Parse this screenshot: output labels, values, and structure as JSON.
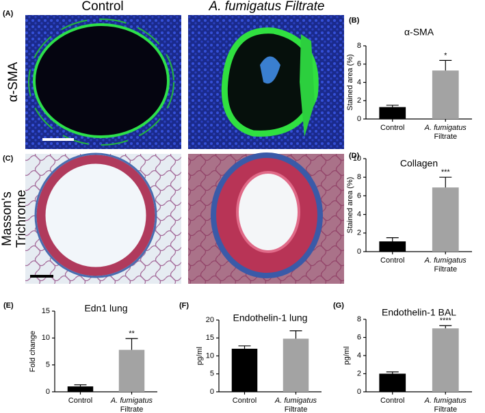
{
  "figure": {
    "image_panels": [
      "(A)",
      "(C)"
    ],
    "columns": [
      "Control",
      "A. fumigatus Filtrate"
    ],
    "rows": [
      [
        "α-SMA"
      ],
      [
        "Masson's",
        "Trichrome"
      ]
    ]
  },
  "chart_data": [
    {
      "type": "bar",
      "panel": "(B)",
      "title": "α-SMA",
      "y_label": "Stained area (%)",
      "categories": [
        [
          "Control"
        ],
        [
          "A. fumigatus",
          "Filtrate"
        ]
      ],
      "values": [
        1.3,
        5.3
      ],
      "errors": [
        0.2,
        1.1
      ],
      "colors": [
        "#000000",
        "#a3a3a3"
      ],
      "annotation": "*",
      "ylim": [
        0,
        8
      ],
      "yticks": [
        0,
        2,
        4,
        6,
        8
      ]
    },
    {
      "type": "bar",
      "panel": "(D)",
      "title": "Collagen",
      "y_label": "Stained area (%)",
      "categories": [
        [
          "Control"
        ],
        [
          "A. fumigatus",
          "Filtrate"
        ]
      ],
      "values": [
        1.1,
        6.9
      ],
      "errors": [
        0.4,
        1.1
      ],
      "colors": [
        "#000000",
        "#a3a3a3"
      ],
      "annotation": "***",
      "ylim": [
        0,
        10
      ],
      "yticks": [
        0,
        2,
        4,
        6,
        8,
        10
      ]
    },
    {
      "type": "bar",
      "panel": "(E)",
      "title": "Edn1 lung",
      "y_label": "Fold change",
      "categories": [
        [
          "Control"
        ],
        [
          "A. fumigatus",
          "Filtrate"
        ]
      ],
      "values": [
        1.0,
        7.8
      ],
      "errors": [
        0.3,
        2.1
      ],
      "colors": [
        "#000000",
        "#a3a3a3"
      ],
      "annotation": "**",
      "ylim": [
        0,
        15
      ],
      "yticks": [
        0,
        5,
        10,
        15
      ]
    },
    {
      "type": "bar",
      "panel": "(F)",
      "title": "Endothelin-1 lung",
      "y_label": "pg/ml",
      "categories": [
        [
          "Control"
        ],
        [
          "A. fumigatus",
          "Filtrate"
        ]
      ],
      "values": [
        12.0,
        14.8
      ],
      "errors": [
        0.8,
        2.2
      ],
      "colors": [
        "#000000",
        "#a3a3a3"
      ],
      "ylim": [
        0,
        20
      ],
      "yticks": [
        0,
        5,
        10,
        15,
        20
      ]
    },
    {
      "type": "bar",
      "panel": "(G)",
      "title": "Endothelin-1 BAL",
      "y_label": "pg/ml",
      "categories": [
        [
          "Control"
        ],
        [
          "A. fumigatus",
          "Filtrate"
        ]
      ],
      "values": [
        2.0,
        7.0
      ],
      "errors": [
        0.2,
        0.3
      ],
      "colors": [
        "#000000",
        "#a3a3a3"
      ],
      "annotation": "****",
      "ylim": [
        0,
        8
      ],
      "yticks": [
        0,
        2,
        4,
        6,
        8
      ]
    }
  ]
}
